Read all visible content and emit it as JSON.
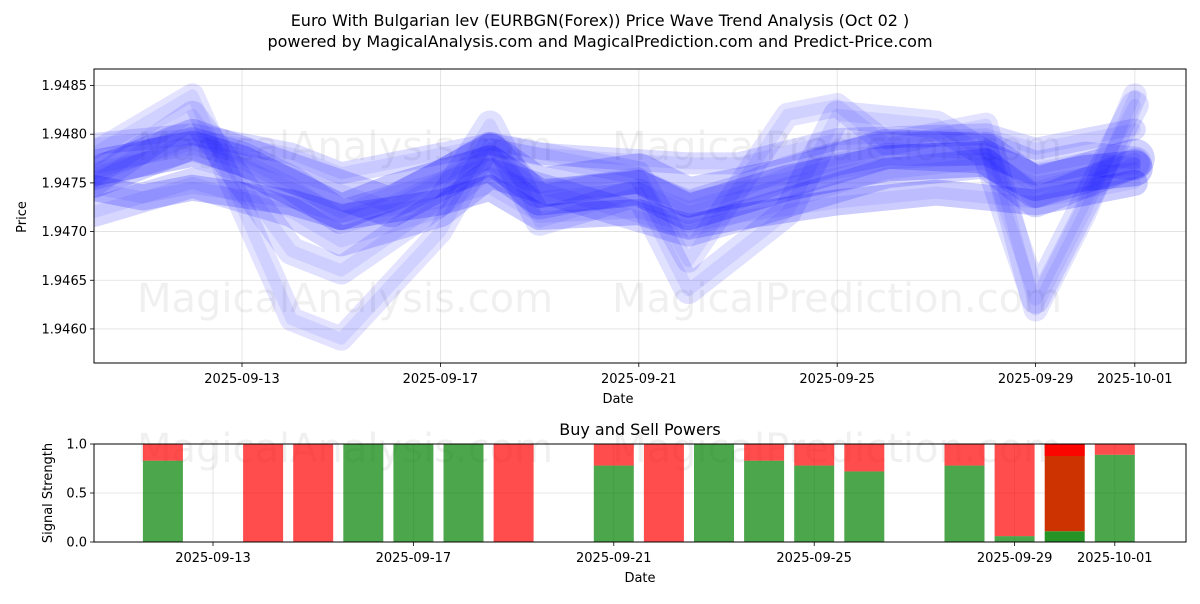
{
  "title_line1": "Euro With Bulgarian lev (EURBGN(Forex)) Price Wave Trend Analysis (Oct 02 )",
  "title_line2": "powered by MagicalAnalysis.com and MagicalPrediction.com and Predict-Price.com",
  "watermarks": [
    "MagicalAnalysis.com",
    "MagicalPrediction.com"
  ],
  "colors": {
    "wave": "#0000ff",
    "buy": "#008000",
    "sell": "#ff0000",
    "strong_sell": "#cc3300"
  },
  "chart_data": [
    {
      "type": "line",
      "name": "price-wave-chart",
      "xlabel": "Date",
      "ylabel": "Price",
      "x_range": [
        "2025-09-10",
        "2025-10-02"
      ],
      "ylim": [
        1.94565,
        1.94867
      ],
      "x_ticks": [
        "2025-09-13",
        "2025-09-17",
        "2025-09-21",
        "2025-09-25",
        "2025-09-29",
        "2025-10-01"
      ],
      "y_ticks": [
        1.946,
        1.9465,
        1.947,
        1.9475,
        1.948,
        1.9485
      ],
      "y_tick_labels": [
        "1.9460",
        "1.9465",
        "1.9470",
        "1.9475",
        "1.9480",
        "1.9485"
      ],
      "grid": true,
      "series": [
        {
          "name": "wave-1",
          "dates": [
            "2025-09-10",
            "2025-09-12",
            "2025-09-13",
            "2025-09-14",
            "2025-09-15",
            "2025-09-16",
            "2025-09-17",
            "2025-09-18",
            "2025-09-19",
            "2025-09-20",
            "2025-09-21",
            "2025-09-22",
            "2025-09-23",
            "2025-09-24",
            "2025-09-25",
            "2025-09-26",
            "2025-09-27",
            "2025-09-28",
            "2025-09-29",
            "2025-09-30",
            "2025-10-01"
          ],
          "values": [
            1.9476,
            1.9479,
            1.94775,
            1.9475,
            1.94715,
            1.9473,
            1.94755,
            1.94785,
            1.9473,
            1.9474,
            1.94745,
            1.94725,
            1.9474,
            1.9476,
            1.94775,
            1.94785,
            1.94785,
            1.94785,
            1.94765,
            1.94775,
            1.9477
          ]
        },
        {
          "name": "wave-2",
          "dates": [
            "2025-09-10",
            "2025-09-12",
            "2025-09-14",
            "2025-09-15",
            "2025-09-17",
            "2025-09-18",
            "2025-09-19",
            "2025-09-21",
            "2025-09-22",
            "2025-09-24",
            "2025-09-25",
            "2025-09-27",
            "2025-09-28",
            "2025-09-29",
            "2025-10-01"
          ],
          "values": [
            1.9475,
            1.9482,
            1.9468,
            1.9466,
            1.9473,
            1.9481,
            1.9471,
            1.9474,
            1.9464,
            1.9472,
            1.9482,
            1.9481,
            1.9478,
            1.9463,
            1.9483
          ]
        },
        {
          "name": "wave-3",
          "dates": [
            "2025-09-10",
            "2025-09-12",
            "2025-09-14",
            "2025-09-15",
            "2025-09-17",
            "2025-09-18",
            "2025-09-21",
            "2025-09-22",
            "2025-09-24",
            "2025-09-25",
            "2025-09-26",
            "2025-09-28",
            "2025-09-29",
            "2025-09-30",
            "2025-10-01"
          ],
          "values": [
            1.9478,
            1.9484,
            1.9461,
            1.9459,
            1.947,
            1.9479,
            1.9476,
            1.9467,
            1.9482,
            1.9483,
            1.9479,
            1.9481,
            1.9462,
            1.9472,
            1.9484
          ]
        },
        {
          "name": "wave-4",
          "dates": [
            "2025-09-10",
            "2025-09-12",
            "2025-09-14",
            "2025-09-16",
            "2025-09-18",
            "2025-09-19",
            "2025-09-21",
            "2025-09-22",
            "2025-09-24",
            "2025-09-26",
            "2025-09-28",
            "2025-09-29",
            "2025-10-01"
          ],
          "values": [
            1.94755,
            1.94795,
            1.9476,
            1.94725,
            1.9478,
            1.94745,
            1.9476,
            1.94735,
            1.94755,
            1.94785,
            1.9478,
            1.94745,
            1.94775
          ]
        },
        {
          "name": "wave-5",
          "dates": [
            "2025-09-10",
            "2025-09-12",
            "2025-09-14",
            "2025-09-15",
            "2025-09-17",
            "2025-09-18",
            "2025-09-20",
            "2025-09-22",
            "2025-09-24",
            "2025-09-26",
            "2025-09-28",
            "2025-09-29",
            "2025-10-01"
          ],
          "values": [
            1.9472,
            1.9475,
            1.9472,
            1.9469,
            1.9472,
            1.9476,
            1.9473,
            1.947,
            1.9473,
            1.9476,
            1.9477,
            1.9473,
            1.9477
          ]
        },
        {
          "name": "wave-6",
          "dates": [
            "2025-09-10",
            "2025-09-12",
            "2025-09-14",
            "2025-09-15",
            "2025-09-18",
            "2025-09-19",
            "2025-09-22",
            "2025-09-23",
            "2025-09-25",
            "2025-09-28",
            "2025-09-29",
            "2025-10-01"
          ],
          "values": [
            1.9479,
            1.948,
            1.9478,
            1.9476,
            1.9479,
            1.9478,
            1.9477,
            1.9477,
            1.94795,
            1.948,
            1.94785,
            1.94805
          ]
        },
        {
          "name": "wave-7",
          "dates": [
            "2025-09-10",
            "2025-09-11",
            "2025-09-12",
            "2025-09-14",
            "2025-09-15",
            "2025-09-17",
            "2025-09-18",
            "2025-09-19",
            "2025-09-21",
            "2025-09-22",
            "2025-09-23",
            "2025-09-25",
            "2025-09-27",
            "2025-09-29",
            "2025-10-01"
          ],
          "values": [
            1.94745,
            1.94735,
            1.94745,
            1.9473,
            1.94715,
            1.9473,
            1.94745,
            1.94715,
            1.9472,
            1.94705,
            1.94715,
            1.9473,
            1.9474,
            1.9473,
            1.9475
          ]
        },
        {
          "name": "wave-8",
          "dates": [
            "2025-09-10",
            "2025-09-12",
            "2025-09-13",
            "2025-09-15",
            "2025-09-16",
            "2025-09-18",
            "2025-09-19",
            "2025-09-21",
            "2025-09-22",
            "2025-09-24",
            "2025-09-26",
            "2025-09-28",
            "2025-09-29",
            "2025-09-30",
            "2025-10-01"
          ],
          "values": [
            1.94765,
            1.94785,
            1.9477,
            1.9472,
            1.9474,
            1.9477,
            1.94735,
            1.94745,
            1.9472,
            1.9475,
            1.9477,
            1.94775,
            1.9475,
            1.9476,
            1.94765
          ]
        }
      ]
    },
    {
      "type": "bar",
      "name": "buy-sell-powers-chart",
      "title": "Buy and Sell Powers",
      "xlabel": "",
      "ylabel": "Signal Strength",
      "ylim": [
        0,
        1
      ],
      "y_ticks": [
        0,
        0.5,
        1
      ],
      "y_tick_labels": [
        "0.0",
        "0.5",
        "1.0"
      ],
      "x_ticks": [
        "2025-09-13",
        "2025-09-17",
        "2025-09-21",
        "2025-09-25",
        "2025-09-29",
        "2025-10-01"
      ],
      "x_axis_label": "Date",
      "series": [
        {
          "name": "buy",
          "color": "#008000"
        },
        {
          "name": "sell",
          "color": "#ff0000"
        }
      ],
      "bars": [
        {
          "date": "2025-09-12",
          "buy": 0.83,
          "sell": 0.17
        },
        {
          "date": "2025-09-14",
          "buy": 0.0,
          "sell": 1.0
        },
        {
          "date": "2025-09-15",
          "buy": 0.0,
          "sell": 1.0
        },
        {
          "date": "2025-09-16",
          "buy": 1.0,
          "sell": 0.0
        },
        {
          "date": "2025-09-17",
          "buy": 1.0,
          "sell": 0.0
        },
        {
          "date": "2025-09-18",
          "buy": 1.0,
          "sell": 0.0
        },
        {
          "date": "2025-09-19",
          "buy": 0.0,
          "sell": 1.0
        },
        {
          "date": "2025-09-21",
          "buy": 0.78,
          "sell": 0.22
        },
        {
          "date": "2025-09-22",
          "buy": 0.0,
          "sell": 1.0
        },
        {
          "date": "2025-09-23",
          "buy": 1.0,
          "sell": 0.0
        },
        {
          "date": "2025-09-24",
          "buy": 0.83,
          "sell": 0.17
        },
        {
          "date": "2025-09-25",
          "buy": 0.78,
          "sell": 0.22
        },
        {
          "date": "2025-09-26",
          "buy": 0.72,
          "sell": 0.28
        },
        {
          "date": "2025-09-28",
          "buy": 0.78,
          "sell": 0.22
        },
        {
          "date": "2025-09-29",
          "buy": 0.06,
          "sell": 0.94
        },
        {
          "date": "2025-09-30",
          "buy": 0.11,
          "sell": 0.89,
          "strong": true
        },
        {
          "date": "2025-10-01",
          "buy": 0.89,
          "sell": 0.11
        }
      ]
    }
  ]
}
